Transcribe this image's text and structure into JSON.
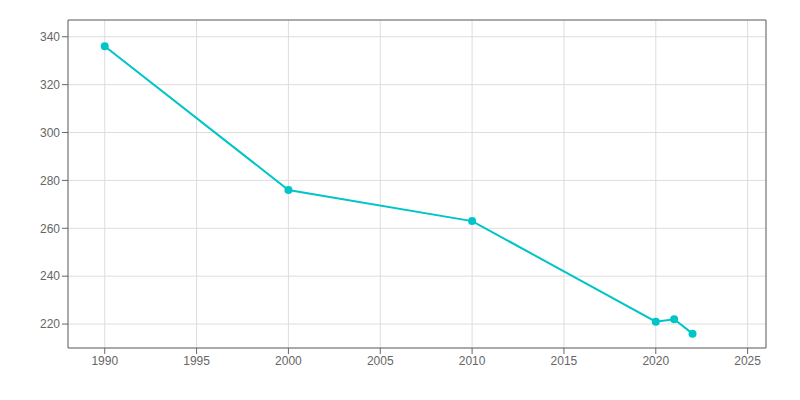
{
  "chart_data": {
    "type": "line",
    "x": [
      1990,
      2000,
      2010,
      2020,
      2021,
      2022
    ],
    "values": [
      336,
      276,
      263,
      221,
      222,
      216
    ],
    "color": "#00c5c8",
    "marker": "circle",
    "xlim": [
      1988,
      2026
    ],
    "ylim": [
      210,
      347
    ],
    "xticks": [
      1990,
      1995,
      2000,
      2005,
      2010,
      2015,
      2020,
      2025
    ],
    "yticks": [
      220,
      240,
      260,
      280,
      300,
      320,
      340
    ],
    "grid": true
  }
}
